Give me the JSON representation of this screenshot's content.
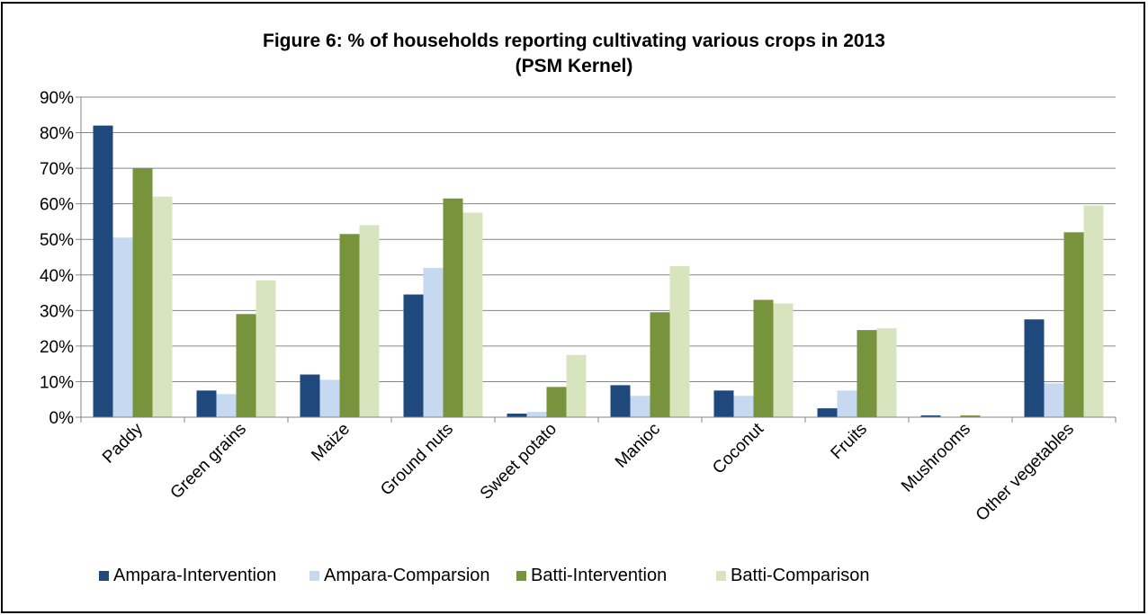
{
  "chart_data": {
    "type": "bar",
    "title": "Figure 6: % of households reporting cultivating various crops in 2013",
    "subtitle": "(PSM Kernel)",
    "categories": [
      "Paddy",
      "Green grains",
      "Maize",
      "Ground nuts",
      "Sweet potato",
      "Manioc",
      "Coconut",
      "Fruits",
      "Mushrooms",
      "Other vegetables"
    ],
    "series": [
      {
        "name": "Ampara-Intervention",
        "color": "#1f497d",
        "values": [
          82,
          7.5,
          12,
          34.5,
          1,
          9,
          7.5,
          2.5,
          0.5,
          27.5
        ]
      },
      {
        "name": "Ampara-Comparsion",
        "color": "#c6d9f1",
        "values": [
          50.5,
          6.5,
          10.5,
          42,
          1.5,
          6,
          6,
          7.5,
          0,
          9.5
        ]
      },
      {
        "name": "Batti-Intervention",
        "color": "#77933c",
        "values": [
          70,
          29,
          51.5,
          61.5,
          8.5,
          29.5,
          33,
          24.5,
          0.5,
          52
        ]
      },
      {
        "name": "Batti-Comparison",
        "color": "#d7e4bd",
        "values": [
          62,
          38.5,
          54,
          57.5,
          17.5,
          42.5,
          32,
          25,
          0,
          59.5
        ]
      }
    ],
    "yticks": [
      "0%",
      "10%",
      "20%",
      "30%",
      "40%",
      "50%",
      "60%",
      "70%",
      "80%",
      "90%"
    ],
    "ylim": [
      0,
      90
    ],
    "grid": true,
    "legend_position": "bottom"
  }
}
